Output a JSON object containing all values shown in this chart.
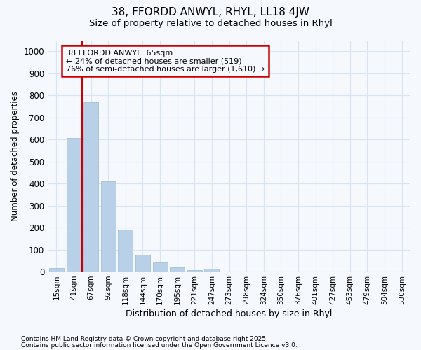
{
  "title1": "38, FFORDD ANWYL, RHYL, LL18 4JW",
  "title2": "Size of property relative to detached houses in Rhyl",
  "xlabel": "Distribution of detached houses by size in Rhyl",
  "ylabel": "Number of detached properties",
  "categories": [
    "15sqm",
    "41sqm",
    "67sqm",
    "92sqm",
    "118sqm",
    "144sqm",
    "170sqm",
    "195sqm",
    "221sqm",
    "247sqm",
    "273sqm",
    "298sqm",
    "324sqm",
    "350sqm",
    "376sqm",
    "401sqm",
    "427sqm",
    "453sqm",
    "479sqm",
    "504sqm",
    "530sqm"
  ],
  "values": [
    15,
    608,
    770,
    410,
    190,
    78,
    40,
    18,
    5,
    13,
    0,
    0,
    0,
    0,
    0,
    0,
    0,
    0,
    0,
    0,
    0
  ],
  "bar_color": "#b8d0e8",
  "bar_edge_color": "#9ab8d0",
  "annotation_box_text_line1": "38 FFORDD ANWYL: 65sqm",
  "annotation_box_text_line2": "← 24% of detached houses are smaller (519)",
  "annotation_box_text_line3": "76% of semi-detached houses are larger (1,610) →",
  "annotation_box_color": "#cc0000",
  "vline_x": 1.5,
  "ylim": [
    0,
    1050
  ],
  "yticks": [
    0,
    100,
    200,
    300,
    400,
    500,
    600,
    700,
    800,
    900,
    1000
  ],
  "footnote1": "Contains HM Land Registry data © Crown copyright and database right 2025.",
  "footnote2": "Contains public sector information licensed under the Open Government Licence v3.0.",
  "background_color": "#f5f8fd",
  "grid_color": "#d8e4f0",
  "title_fontsize": 11,
  "subtitle_fontsize": 9.5
}
